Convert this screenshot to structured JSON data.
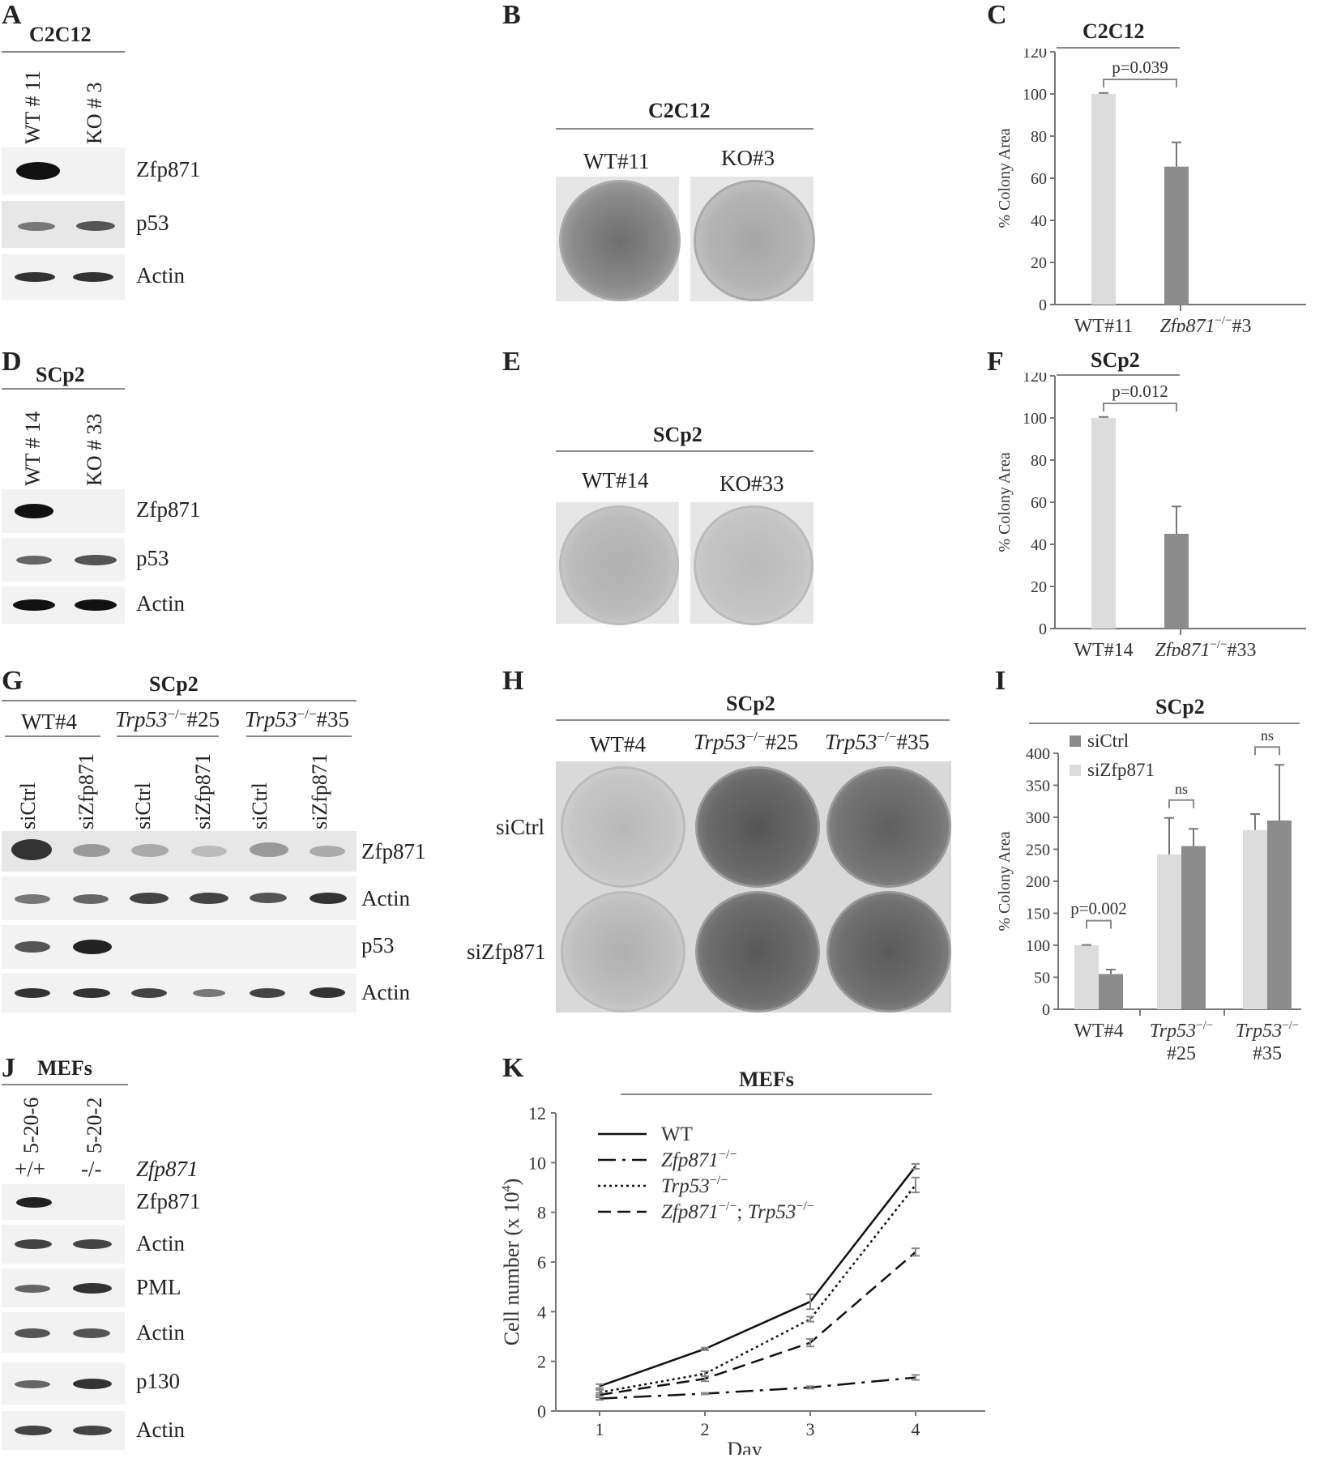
{
  "panelA": {
    "letter": "A",
    "title": "C2C12",
    "lanes": [
      "WT # 11",
      "KO # 3"
    ],
    "rows": [
      "Zfp871",
      "p53",
      "Actin"
    ]
  },
  "panelB": {
    "letter": "B",
    "title": "C2C12",
    "cols": [
      "WT#11",
      "KO#3"
    ]
  },
  "panelD": {
    "letter": "D",
    "title": "SCp2",
    "lanes": [
      "WT # 14",
      "KO # 33"
    ],
    "rows": [
      "Zfp871",
      "p53",
      "Actin"
    ]
  },
  "panelE": {
    "letter": "E",
    "title": "SCp2",
    "cols": [
      "WT#14",
      "KO#33"
    ]
  },
  "panelG": {
    "letter": "G",
    "title": "SCp2",
    "groups": [
      "WT#4",
      "#25",
      "#35"
    ],
    "trp": "Trp53",
    "sup": "−/−",
    "lanes": [
      "siCtrl",
      "siZfp871",
      "siCtrl",
      "siZfp871",
      "siCtrl",
      "siZfp871"
    ],
    "rows": [
      "Zfp871",
      "Actin",
      "p53",
      "Actin"
    ]
  },
  "panelH": {
    "letter": "H",
    "title": "SCp2",
    "cols": [
      "WT#4",
      "#25",
      "#35"
    ],
    "trp": "Trp53",
    "sup": "−/−",
    "rows": [
      "siCtrl",
      "siZfp871"
    ]
  },
  "panelJ": {
    "letter": "J",
    "title": "MEFs",
    "lanes": [
      "5-20-6",
      "5-20-2"
    ],
    "genotypes": [
      "+/+",
      "-/-"
    ],
    "gene": "Zfp871",
    "rows": [
      "Zfp871",
      "Actin",
      "PML",
      "Actin",
      "p130",
      "Actin"
    ]
  },
  "chart_data": [
    {
      "id": "C",
      "type": "bar",
      "letter": "C",
      "title": "C2C12",
      "ylabel": "% Colony Area",
      "ylim": [
        0,
        120
      ],
      "yticks": [
        0,
        20,
        40,
        60,
        80,
        100,
        120
      ],
      "categories": [
        "WT#11",
        "Zfp871−/−#3"
      ],
      "cat_gene": "Zfp871",
      "cat_sup": "−/−",
      "cat_suffix": "#3",
      "values": [
        100,
        65.5
      ],
      "errors": [
        0.5,
        11.5
      ],
      "annotation": "p=0.039",
      "colors": [
        "#dcdcdc",
        "#8c8c8c"
      ]
    },
    {
      "id": "F",
      "type": "bar",
      "letter": "F",
      "title": "SCp2",
      "ylabel": "% Colony Area",
      "ylim": [
        0,
        120
      ],
      "yticks": [
        0,
        20,
        40,
        60,
        80,
        100,
        120
      ],
      "categories": [
        "WT#14",
        "Zfp871−/−#33"
      ],
      "cat_gene": "Zfp871",
      "cat_sup": "−/−",
      "cat_suffix": "#33",
      "values": [
        100,
        45
      ],
      "errors": [
        0.5,
        13
      ],
      "annotation": "p=0.012",
      "colors": [
        "#dcdcdc",
        "#8c8c8c"
      ]
    },
    {
      "id": "I",
      "type": "bar",
      "letter": "I",
      "title": "SCp2",
      "ylabel": "% Colony Area",
      "ylim": [
        0,
        400
      ],
      "yticks": [
        0,
        50,
        100,
        150,
        200,
        250,
        300,
        350,
        400
      ],
      "categories": [
        "WT#4",
        "#25",
        "#35"
      ],
      "cat_gene": "Trp53",
      "cat_sup": "−/−",
      "legend": [
        "siCtrl",
        "siZfp871"
      ],
      "legend_colors": [
        "#8c8c8c",
        "#dcdcdc"
      ],
      "series": [
        {
          "name": "siZfp871",
          "values": [
            100,
            242,
            280
          ],
          "errors": [
            0.5,
            57,
            25
          ]
        },
        {
          "name": "siCtrl",
          "values": [
            55,
            255,
            295
          ],
          "errors": [
            7,
            27,
            87
          ]
        }
      ],
      "annotations": [
        "p=0.002",
        "ns",
        "ns"
      ]
    },
    {
      "id": "K",
      "type": "line",
      "letter": "K",
      "title": "MEFs",
      "xlabel": "Day",
      "ylabel": "Cell number (x 10",
      "ylabel_sup": "4",
      "ylabel_end": ")",
      "ylim": [
        0,
        12
      ],
      "yticks": [
        0,
        2,
        4,
        6,
        8,
        10,
        12
      ],
      "x": [
        1,
        2,
        3,
        4
      ],
      "legend_gene": "Zfp871",
      "legend_gene2": "Trp53",
      "legend_sup": "−/−",
      "series": [
        {
          "name": "WT",
          "values": [
            1.0,
            2.5,
            4.4,
            9.85
          ],
          "errors": [
            0.08,
            0.05,
            0.3,
            0.1
          ],
          "dash": ""
        },
        {
          "name": "Zfp871−/−",
          "values": [
            0.5,
            0.7,
            0.95,
            1.35
          ],
          "errors": [
            0.05,
            0.03,
            0.05,
            0.1
          ],
          "dash": "22,8,4,8"
        },
        {
          "name": "Trp53−/−",
          "values": [
            0.75,
            1.5,
            3.7,
            9.1
          ],
          "errors": [
            0.1,
            0.1,
            0.1,
            0.3
          ],
          "dash": "3,4"
        },
        {
          "name": "Zfp871−/−; Trp53−/−",
          "values": [
            0.65,
            1.3,
            2.75,
            6.4
          ],
          "errors": [
            0.08,
            0.1,
            0.15,
            0.15
          ],
          "dash": "16,8"
        }
      ]
    }
  ]
}
